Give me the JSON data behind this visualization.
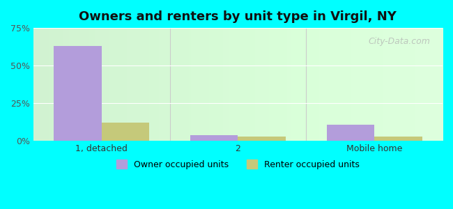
{
  "title": "Owners and renters by unit type in Virgil, NY",
  "categories": [
    "1, detached",
    "2",
    "Mobile home"
  ],
  "owner_values": [
    63,
    4,
    11
  ],
  "renter_values": [
    12,
    3,
    3
  ],
  "owner_color": "#b39ddb",
  "renter_color": "#c5c97a",
  "ylim": [
    0,
    75
  ],
  "yticks": [
    0,
    25,
    50,
    75
  ],
  "yticklabels": [
    "0%",
    "25%",
    "50%",
    "75%"
  ],
  "bar_width": 0.35,
  "bg_color_left": "#d8f0d8",
  "bg_color_right": "#e8ffe8",
  "outer_bg": "#00ffff",
  "legend_owner": "Owner occupied units",
  "legend_renter": "Renter occupied units",
  "watermark": "City-Data.com"
}
